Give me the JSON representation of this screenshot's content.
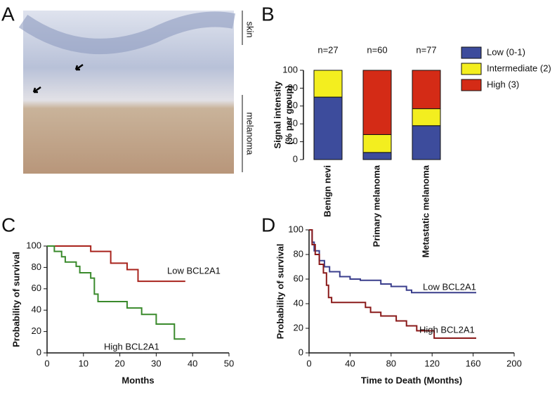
{
  "image_panel": {
    "panel": "A",
    "labels": [
      "skin",
      "melanoma"
    ]
  },
  "chart_data": [
    {
      "type": "stacked_bar",
      "panel": "B",
      "categories": [
        "Benign nevi",
        "Primary melanoma",
        "Metastatic melanoma"
      ],
      "annotations": [
        "n=27",
        "n=60",
        "n=77"
      ],
      "ylabel": [
        "Signal intensity",
        "(% per group)"
      ],
      "series": [
        {
          "name": "Low (0-1)",
          "color": "#3d4c9c",
          "values": [
            70,
            8,
            38
          ]
        },
        {
          "name": "Intermediate (2)",
          "color": "#f3ee1f",
          "values": [
            30,
            20,
            19
          ]
        },
        {
          "name": "High (3)",
          "color": "#d42b16",
          "values": [
            0,
            72,
            43
          ]
        }
      ],
      "ylim": [
        0,
        100
      ],
      "yticks": [
        0,
        20,
        40,
        60,
        80,
        100
      ]
    },
    {
      "type": "step",
      "panel": "C",
      "xlabel": "Months",
      "ylabel": "Probability of survival",
      "xlim": [
        0,
        50
      ],
      "xticks": [
        0,
        10,
        20,
        30,
        40,
        50
      ],
      "ylim": [
        0,
        100
      ],
      "yticks": [
        0,
        20,
        40,
        60,
        80,
        100
      ],
      "series": [
        {
          "name": "Low BCL2A1",
          "color": "#a8231c",
          "x": [
            0,
            12,
            17.5,
            22,
            25,
            38
          ],
          "values": [
            100,
            95,
            84,
            78,
            67,
            67
          ]
        },
        {
          "name": "High BCL2A1",
          "color": "#3a8a2c",
          "x": [
            0,
            2,
            4,
            5,
            8,
            9,
            12,
            13,
            14,
            22,
            26,
            30,
            35,
            38
          ],
          "values": [
            100,
            95,
            90,
            85,
            81,
            75,
            70,
            55,
            48,
            42,
            36,
            27,
            13,
            13
          ]
        }
      ]
    },
    {
      "type": "step",
      "panel": "D",
      "xlabel": "Time to Death (Months)",
      "ylabel": "Probability of survival",
      "xlim": [
        0,
        200
      ],
      "xticks": [
        0,
        40,
        80,
        120,
        160,
        200
      ],
      "ylim": [
        0,
        100
      ],
      "yticks": [
        0,
        20,
        40,
        60,
        80,
        100
      ],
      "series": [
        {
          "name": "Low BCL2A1",
          "color": "#3a3e8c",
          "x": [
            0,
            3,
            5,
            10,
            15,
            20,
            30,
            40,
            50,
            70,
            80,
            95,
            100,
            163
          ],
          "values": [
            100,
            90,
            83,
            75,
            70,
            66,
            62,
            60,
            59,
            56,
            54,
            51,
            49,
            49
          ]
        },
        {
          "name": "High BCL2A1",
          "color": "#8a1a1a",
          "x": [
            0,
            3,
            6,
            10,
            14,
            17,
            19,
            22,
            50,
            55,
            60,
            70,
            85,
            95,
            105,
            122,
            163
          ],
          "values": [
            100,
            88,
            80,
            72,
            65,
            55,
            45,
            41,
            41,
            37,
            33,
            30,
            26,
            22,
            18,
            12,
            12
          ]
        }
      ]
    }
  ]
}
